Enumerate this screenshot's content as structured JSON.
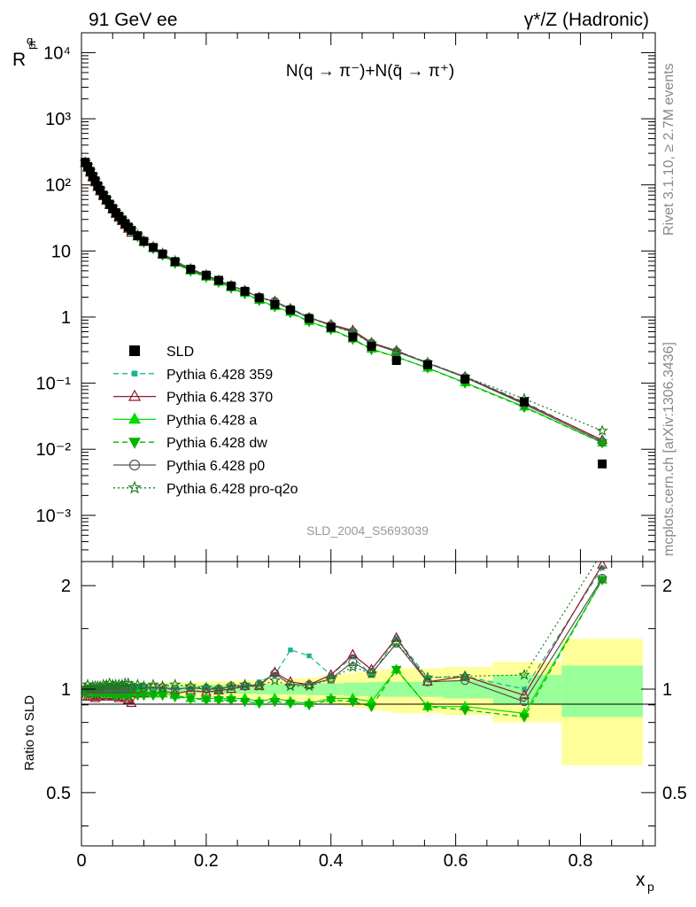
{
  "title_left": "91 GeV ee",
  "title_right": "γ*/Z (Hadronic)",
  "side_label_top": "Rivet 3.1.10, ≥ 2.7M events",
  "side_label_bottom": "mcplots.cern.ch [arXiv:1306.3436]",
  "analysis_id": "SLD_2004_S5693039",
  "main_ylabel": "R",
  "main_ylabel_sup": "q",
  "main_ylabel_sub": "pi",
  "ratio_ylabel": "Ratio to SLD",
  "xlabel": "x",
  "xlabel_sub": "p",
  "plot_label": "N(q → π⁻)+N(q̄ → π⁺)",
  "colors": {
    "SLD": "#000000",
    "band_outer": "#ffff99",
    "band_inner": "#99ff99",
    "p359": "#1ab394",
    "p370": "#8b1a2a",
    "pa": "#00dd00",
    "pdw": "#00b300",
    "pp0": "#555555",
    "pq2o": "#1a7a1a"
  },
  "chart_data": [
    {
      "type": "line",
      "yscale": "log",
      "xlim": [
        0,
        0.92
      ],
      "ylim": [
        0.0002,
        20000
      ],
      "xlabel": "x_p",
      "ylabel": "R^q_pi",
      "legend_position": "bottom-left",
      "yticks": [
        "10⁻³",
        "10⁻²",
        "10⁻¹",
        "1",
        "10",
        "10²",
        "10³",
        "10⁴"
      ],
      "x": [
        0.006,
        0.01,
        0.014,
        0.018,
        0.022,
        0.026,
        0.03,
        0.035,
        0.04,
        0.045,
        0.05,
        0.055,
        0.06,
        0.065,
        0.07,
        0.075,
        0.08,
        0.09,
        0.1,
        0.115,
        0.13,
        0.15,
        0.175,
        0.2,
        0.22,
        0.24,
        0.262,
        0.285,
        0.31,
        0.335,
        0.365,
        0.4,
        0.435,
        0.465,
        0.505,
        0.555,
        0.615,
        0.71,
        0.835
      ],
      "series": [
        {
          "name": "SLD",
          "marker": "square",
          "values": [
            220,
            190,
            160,
            135,
            115,
            97,
            83,
            70,
            60,
            51,
            44,
            38,
            33.5,
            29.5,
            26,
            23,
            20.5,
            17,
            14,
            11.3,
            9.0,
            6.9,
            5.3,
            4.3,
            3.6,
            2.95,
            2.45,
            1.95,
            1.55,
            1.28,
            0.95,
            0.7,
            0.5,
            0.36,
            0.22,
            0.19,
            0.115,
            0.052,
            0.006
          ]
        },
        {
          "name": "Pythia 6.428 359",
          "marker": "filled-square-small",
          "dash": "dashed",
          "values": [
            216,
            192,
            160,
            135,
            115,
            98,
            84,
            71,
            61,
            52,
            45,
            39,
            34,
            30,
            26.5,
            23.5,
            21,
            17.3,
            14.3,
            11.5,
            9.2,
            7.0,
            5.4,
            4.3,
            3.6,
            3.0,
            2.5,
            2.0,
            1.68,
            1.35,
            1.0,
            0.76,
            0.6,
            0.41,
            0.31,
            0.205,
            0.125,
            0.052,
            0.0135
          ]
        },
        {
          "name": "Pythia 6.428 370",
          "marker": "open-triangle",
          "dash": "solid",
          "values": [
            210,
            180,
            152,
            128,
            108,
            92,
            79,
            67,
            57,
            49,
            42,
            36,
            31.5,
            28,
            24.5,
            21.5,
            18.7,
            16.5,
            13.6,
            11.0,
            8.9,
            6.7,
            5.2,
            4.2,
            3.55,
            2.95,
            2.5,
            1.98,
            1.73,
            1.34,
            0.98,
            0.77,
            0.63,
            0.41,
            0.31,
            0.2,
            0.125,
            0.05,
            0.0138
          ]
        },
        {
          "name": "Pythia 6.428 a",
          "marker": "filled-triangle",
          "dash": "solid",
          "values": [
            215,
            188,
            158,
            133,
            113,
            96,
            82,
            69,
            59,
            50,
            43,
            37,
            33,
            29,
            25.5,
            22.5,
            20,
            16.6,
            13.7,
            11.0,
            8.7,
            6.6,
            5.0,
            4.05,
            3.4,
            2.8,
            2.3,
            1.8,
            1.45,
            1.18,
            0.86,
            0.66,
            0.47,
            0.33,
            0.25,
            0.17,
            0.102,
            0.044,
            0.0125
          ]
        },
        {
          "name": "Pythia 6.428 dw",
          "marker": "filled-triangle-down",
          "dash": "dashed",
          "values": [
            214,
            187,
            157,
            132,
            112,
            95,
            81,
            68,
            58,
            49.5,
            42.5,
            36.5,
            32.5,
            28.5,
            25,
            22,
            19.8,
            16.4,
            13.5,
            10.8,
            8.6,
            6.5,
            4.95,
            4.0,
            3.35,
            2.75,
            2.25,
            1.78,
            1.43,
            1.16,
            0.85,
            0.65,
            0.46,
            0.32,
            0.25,
            0.17,
            0.1,
            0.043,
            0.0125
          ]
        },
        {
          "name": "Pythia 6.428 p0",
          "marker": "open-circle",
          "dash": "solid",
          "values": [
            217,
            190,
            160,
            135,
            115,
            97,
            83,
            70,
            60,
            51,
            44,
            38,
            33.5,
            29.5,
            26,
            23,
            20.5,
            17,
            14.1,
            11.4,
            9.1,
            6.9,
            5.35,
            4.3,
            3.6,
            3.0,
            2.5,
            2.0,
            1.72,
            1.32,
            0.98,
            0.75,
            0.6,
            0.4,
            0.3,
            0.2,
            0.122,
            0.048,
            0.013
          ]
        },
        {
          "name": "Pythia 6.428 pro-q2o",
          "marker": "open-star",
          "dash": "dotted",
          "values": [
            222,
            195,
            162,
            138,
            117,
            99,
            85,
            72,
            62,
            53,
            45.5,
            39,
            34.5,
            30.5,
            27,
            24,
            21,
            17.5,
            14.3,
            11.6,
            9.2,
            7.1,
            5.4,
            4.35,
            3.6,
            3.0,
            2.52,
            1.98,
            1.65,
            1.3,
            0.97,
            0.75,
            0.58,
            0.4,
            0.3,
            0.205,
            0.125,
            0.058,
            0.019
          ]
        }
      ]
    },
    {
      "type": "line",
      "ylim": [
        0.35,
        2.35
      ],
      "xlim": [
        0,
        0.92
      ],
      "ylabel": "Ratio to SLD",
      "yticks": [
        "0.5",
        "1",
        "2"
      ],
      "xticks": [
        "0",
        "0.2",
        "0.4",
        "0.6",
        "0.8"
      ],
      "bands": {
        "edges": [
          0.0,
          0.01,
          0.02,
          0.04,
          0.06,
          0.08,
          0.1,
          0.12,
          0.14,
          0.16,
          0.18,
          0.2,
          0.22,
          0.24,
          0.26,
          0.28,
          0.3,
          0.32,
          0.34,
          0.36,
          0.38,
          0.4,
          0.42,
          0.44,
          0.46,
          0.48,
          0.5,
          0.53,
          0.58,
          0.66,
          0.77,
          0.9
        ],
        "outer_half": [
          0.03,
          0.03,
          0.035,
          0.04,
          0.04,
          0.04,
          0.045,
          0.045,
          0.05,
          0.05,
          0.05,
          0.055,
          0.055,
          0.06,
          0.06,
          0.065,
          0.065,
          0.07,
          0.075,
          0.08,
          0.09,
          0.1,
          0.11,
          0.12,
          0.13,
          0.14,
          0.15,
          0.15,
          0.16,
          0.2,
          0.4,
          0.9
        ],
        "inner_half": [
          0.015,
          0.015,
          0.02,
          0.02,
          0.02,
          0.02,
          0.02,
          0.02,
          0.025,
          0.025,
          0.025,
          0.03,
          0.03,
          0.03,
          0.03,
          0.035,
          0.035,
          0.035,
          0.035,
          0.04,
          0.04,
          0.04,
          0.045,
          0.045,
          0.05,
          0.05,
          0.05,
          0.05,
          0.06,
          0.1,
          0.17,
          0.75
        ]
      },
      "series": [
        {
          "name": "Pythia 6.428 359",
          "values": [
            0.98,
            1.01,
            1.0,
            1.0,
            1.0,
            1.01,
            1.01,
            1.01,
            1.02,
            1.02,
            1.02,
            1.03,
            1.01,
            1.02,
            1.02,
            1.02,
            1.02,
            1.02,
            1.02,
            1.0,
            1.0,
            1.0,
            1.0,
            1.02,
            1.0,
            1.01,
            1.02,
            1.05,
            1.1,
            1.3,
            1.25,
            1.1,
            1.24,
            1.1,
            1.41,
            1.08,
            1.09,
            1.0,
            2.25
          ]
        },
        {
          "name": "Pythia 6.428 370",
          "values": [
            0.95,
            0.95,
            0.95,
            0.95,
            0.94,
            0.95,
            0.95,
            0.96,
            0.95,
            0.96,
            0.95,
            0.95,
            0.94,
            0.95,
            0.94,
            0.93,
            0.91,
            0.97,
            0.97,
            0.97,
            0.99,
            0.97,
            0.99,
            0.98,
            0.99,
            1.0,
            1.02,
            1.02,
            1.12,
            1.05,
            1.03,
            1.1,
            1.26,
            1.14,
            1.41,
            1.05,
            1.09,
            0.96,
            2.3
          ]
        },
        {
          "name": "Pythia 6.428 a",
          "values": [
            0.98,
            0.99,
            0.99,
            0.99,
            0.98,
            0.99,
            0.99,
            0.99,
            0.98,
            0.98,
            0.98,
            0.97,
            0.99,
            0.98,
            0.98,
            0.98,
            0.98,
            0.98,
            0.98,
            0.97,
            0.97,
            0.96,
            0.94,
            0.94,
            0.94,
            0.94,
            0.94,
            0.92,
            0.94,
            0.92,
            0.91,
            0.94,
            0.94,
            0.92,
            1.14,
            0.89,
            0.89,
            0.85,
            2.08
          ]
        },
        {
          "name": "Pythia 6.428 dw",
          "values": [
            0.97,
            0.98,
            0.98,
            0.98,
            0.97,
            0.98,
            0.98,
            0.97,
            0.97,
            0.97,
            0.97,
            0.96,
            0.97,
            0.97,
            0.96,
            0.96,
            0.97,
            0.96,
            0.96,
            0.96,
            0.96,
            0.95,
            0.94,
            0.93,
            0.93,
            0.93,
            0.92,
            0.91,
            0.92,
            0.91,
            0.9,
            0.93,
            0.92,
            0.89,
            1.14,
            0.89,
            0.87,
            0.83,
            2.08
          ]
        },
        {
          "name": "Pythia 6.428 p0",
          "values": [
            0.99,
            1.0,
            1.0,
            1.0,
            1.0,
            1.0,
            1.0,
            1.0,
            1.0,
            1.0,
            1.0,
            1.0,
            1.0,
            1.0,
            1.0,
            1.0,
            1.0,
            1.0,
            1.01,
            1.01,
            1.01,
            1.0,
            1.01,
            1.0,
            1.0,
            1.02,
            1.02,
            1.03,
            1.11,
            1.03,
            1.03,
            1.07,
            1.2,
            1.11,
            1.36,
            1.05,
            1.06,
            0.92,
            2.1
          ]
        },
        {
          "name": "Pythia 6.428 pro-q2o",
          "values": [
            1.01,
            1.03,
            1.01,
            1.02,
            1.02,
            1.02,
            1.02,
            1.03,
            1.03,
            1.04,
            1.03,
            1.03,
            1.03,
            1.03,
            1.04,
            1.04,
            1.02,
            1.03,
            1.02,
            1.03,
            1.02,
            1.03,
            1.02,
            1.01,
            1.0,
            1.02,
            1.03,
            1.02,
            1.06,
            1.02,
            1.02,
            1.07,
            1.16,
            1.11,
            1.36,
            1.08,
            1.09,
            1.1,
            2.5
          ]
        }
      ]
    }
  ]
}
